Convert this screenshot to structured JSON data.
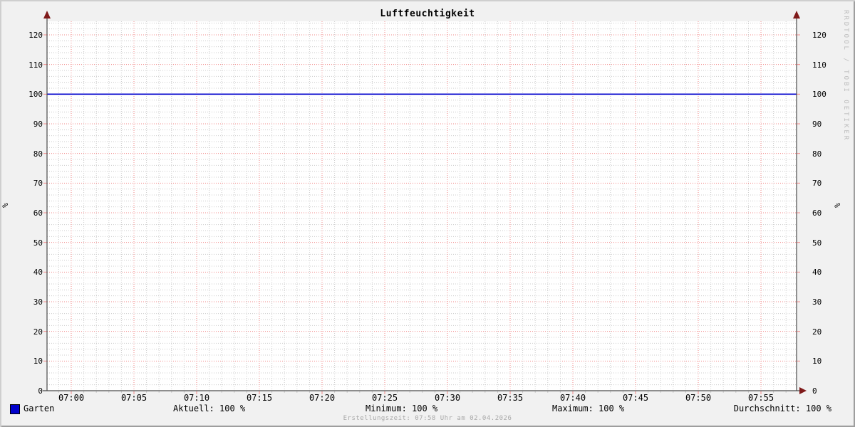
{
  "title": "Luftfeuchtigkeit",
  "y_axis_label": "%",
  "watermark": "RRDTOOL / TOBI OETIKER",
  "legend": {
    "series_label": "Garten",
    "series_color": "#0000cc"
  },
  "stats": {
    "aktuell": "Aktuell: 100 %",
    "minimum": "Minimum: 100 %",
    "maximum": "Maximum: 100 %",
    "durchschnitt": "Durchschnitt: 100 %"
  },
  "footer": "Erstellungszeit: 07:58 Uhr am 02.04.2026",
  "chart_data": {
    "type": "line",
    "title": "Luftfeuchtigkeit",
    "xlabel": "",
    "ylabel": "%",
    "ylim": [
      0,
      125
    ],
    "y_ticks": [
      0,
      10,
      20,
      30,
      40,
      50,
      60,
      70,
      80,
      90,
      100,
      110,
      120
    ],
    "y_minor_step": 2,
    "x_tick_labels": [
      "07:00",
      "07:05",
      "07:10",
      "07:15",
      "07:20",
      "07:25",
      "07:30",
      "07:35",
      "07:40",
      "07:45",
      "07:50",
      "07:55"
    ],
    "x_minutes_per_major": 5,
    "x_range_minutes_rel_0700": [
      -2,
      58
    ],
    "grid": true,
    "legend_position": "bottom-left",
    "series": [
      {
        "name": "Garten",
        "color": "#0000cc",
        "x": [
          "06:58",
          "07:58"
        ],
        "y": [
          100,
          100
        ]
      }
    ],
    "stats_values": {
      "aktuell": 100,
      "minimum": 100,
      "maximum": 100,
      "durchschnitt": 100,
      "unit": "%"
    },
    "colors": {
      "background": "#f1f1f1",
      "canvas": "#ffffff",
      "major_grid": "#f28a8a",
      "minor_grid": "#cccccc",
      "axis": "#4a4a4a",
      "arrow": "#7f1a1a",
      "text": "#000000",
      "footer_text": "#a9a9a9",
      "watermark_text": "#bcbcbc"
    }
  }
}
